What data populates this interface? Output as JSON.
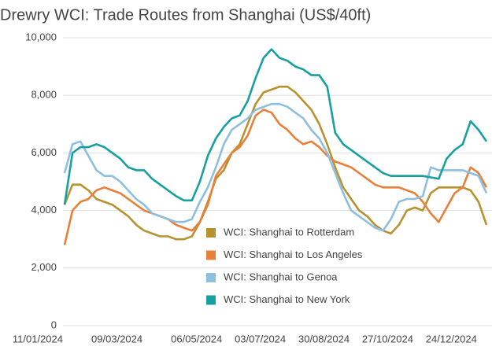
{
  "chart_data": {
    "type": "line",
    "title": "Drewry WCI: Trade Routes from Shanghai (US$/40ft)",
    "categories": [
      "11/01/2024",
      null,
      null,
      null,
      null,
      null,
      null,
      null,
      null,
      null,
      "09/03/2024",
      null,
      null,
      null,
      null,
      null,
      null,
      null,
      null,
      null,
      "06/05/2024",
      null,
      null,
      null,
      null,
      null,
      null,
      null,
      "03/07/2024",
      null,
      null,
      null,
      null,
      null,
      null,
      null,
      "30/08/2024",
      null,
      null,
      null,
      null,
      null,
      null,
      null,
      "27/10/2024",
      null,
      null,
      null,
      null,
      null,
      null,
      null,
      "24/12/2024",
      null
    ],
    "series": [
      {
        "name": "WCI: Shanghai to Rotterdam",
        "color": "#b8922e",
        "values": [
          4200,
          4900,
          4900,
          4700,
          4400,
          4300,
          4200,
          4000,
          3800,
          3500,
          3300,
          3200,
          3100,
          3100,
          3000,
          3000,
          3100,
          3600,
          4300,
          5100,
          5400,
          6000,
          6300,
          7000,
          7700,
          8100,
          8200,
          8300,
          8300,
          8100,
          7800,
          7500,
          7000,
          6300,
          5500,
          4800,
          4400,
          4000,
          3800,
          3500,
          3300,
          3200,
          3500,
          4000,
          4100,
          4000,
          4600,
          4800,
          4800,
          4800,
          4800,
          4700,
          4300,
          3500
        ]
      },
      {
        "name": "WCI: Shanghai to Los Angeles",
        "color": "#e8803a",
        "values": [
          2800,
          4000,
          4300,
          4400,
          4700,
          4800,
          4700,
          4600,
          4400,
          4200,
          4000,
          3900,
          3800,
          3700,
          3500,
          3400,
          3300,
          3600,
          4200,
          5200,
          5600,
          6000,
          6200,
          6600,
          7300,
          7500,
          7400,
          7000,
          6800,
          6500,
          6300,
          6400,
          6200,
          5900,
          5700,
          5600,
          5500,
          5300,
          5100,
          4900,
          4800,
          4800,
          4800,
          4700,
          4600,
          4300,
          3900,
          3600,
          4100,
          4600,
          4800,
          5500,
          5300,
          4800
        ]
      },
      {
        "name": "WCI: Shanghai to Genoa",
        "color": "#8dbfe0",
        "values": [
          5300,
          6300,
          6400,
          5900,
          5400,
          5200,
          5200,
          5000,
          4700,
          4400,
          4200,
          3900,
          3800,
          3700,
          3600,
          3600,
          3700,
          4300,
          4800,
          5500,
          6300,
          6800,
          7000,
          7200,
          7500,
          7600,
          7700,
          7700,
          7600,
          7400,
          7200,
          6800,
          6500,
          6000,
          5300,
          4600,
          4000,
          3800,
          3600,
          3400,
          3300,
          3700,
          4300,
          4400,
          4400,
          4500,
          5500,
          5400,
          5400,
          5400,
          5400,
          5300,
          5200,
          4600
        ]
      },
      {
        "name": "WCI: Shanghai to New York",
        "color": "#17a0a0",
        "values": [
          4200,
          6000,
          6200,
          6200,
          6300,
          6200,
          6000,
          5800,
          5500,
          5400,
          5400,
          5100,
          4900,
          4700,
          4500,
          4350,
          4350,
          5000,
          5900,
          6500,
          6900,
          7200,
          7300,
          7800,
          8600,
          9300,
          9600,
          9300,
          9200,
          9000,
          8900,
          8700,
          8700,
          8300,
          6700,
          6300,
          6100,
          5900,
          5700,
          5500,
          5300,
          5200,
          5200,
          5200,
          5200,
          5200,
          5150,
          5100,
          5800,
          6100,
          6300,
          7100,
          6800,
          6400
        ]
      }
    ],
    "ylim": [
      0,
      10000
    ],
    "yticks": [
      0,
      {
        "value": 2000,
        "label": "2,000"
      },
      {
        "value": 4000,
        "label": "4,000"
      },
      {
        "value": 6000,
        "label": "6,000"
      },
      {
        "value": 8000,
        "label": "8,000"
      },
      {
        "value": 10000,
        "label": "10,000"
      }
    ],
    "grid": true,
    "legend": "lower center"
  }
}
